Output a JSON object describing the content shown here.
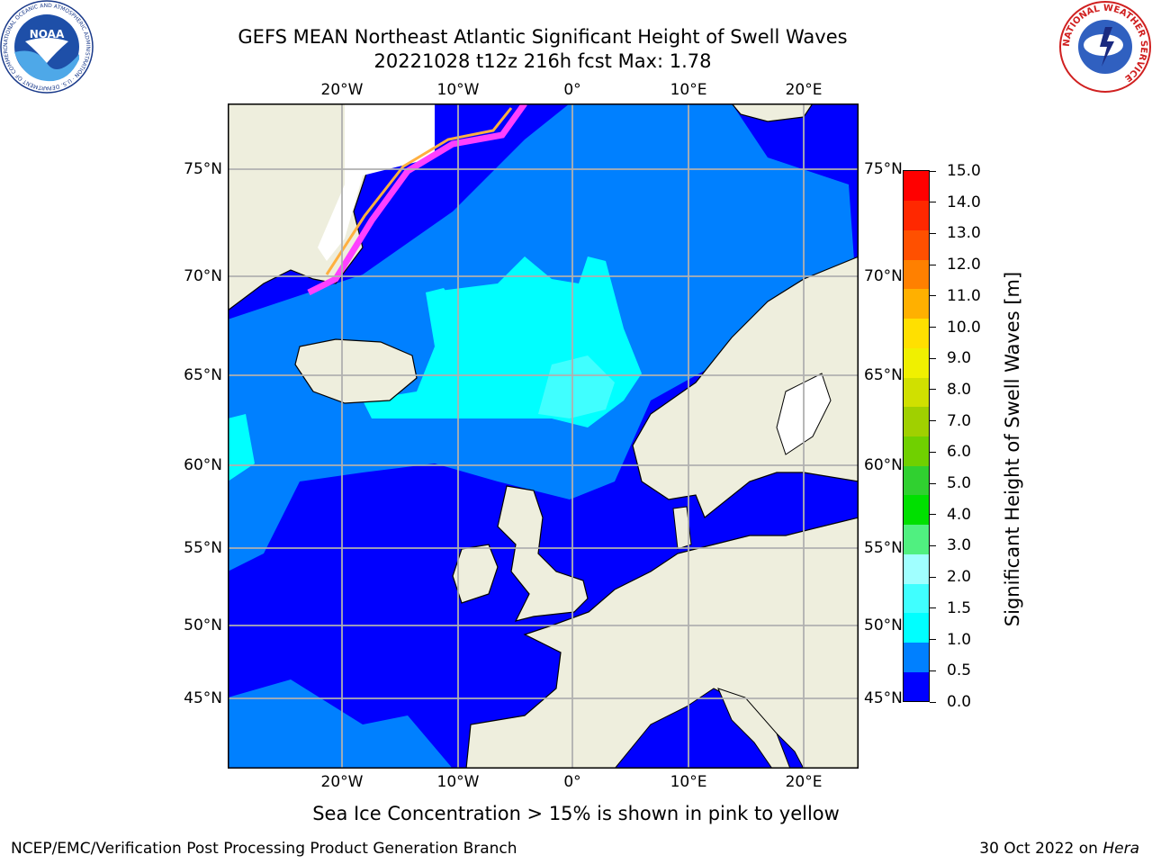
{
  "title": {
    "line1": "GEFS MEAN Northeast Atlantic Significant Height of Swell Waves",
    "line2": "20221028 t12z 216h fcst   Max: 1.78"
  },
  "map": {
    "lon_range": [
      -30,
      25
    ],
    "lat_range": [
      41,
      78
    ],
    "lon_ticks": [
      "20°W",
      "10°W",
      "0°",
      "10°E",
      "20°E"
    ],
    "lon_values": [
      -20,
      -10,
      0,
      10,
      20
    ],
    "lat_ticks": [
      "75°N",
      "70°N",
      "65°N",
      "60°N",
      "55°N",
      "50°N",
      "45°N"
    ],
    "lat_values": [
      75,
      70,
      65,
      60,
      55,
      50,
      45
    ],
    "colors": {
      "ocean_low": "#0000ff",
      "ocean_mid": "#0080ff",
      "ocean_high": "#00ffff",
      "ocean_peak": "#40ffff",
      "land": "#eeeedd",
      "ice_edge": "#ff40ff",
      "ice_warm": "#ffb040",
      "grid": "#b0b0b0"
    }
  },
  "colorbar": {
    "label": "Significant Height of Swell Waves [m]",
    "ticks": [
      "15.0",
      "14.0",
      "13.0",
      "12.0",
      "11.0",
      "10.0",
      "9.0",
      "8.0",
      "7.0",
      "6.0",
      "5.0",
      "4.0",
      "3.0",
      "2.0",
      "1.5",
      "1.0",
      "0.5",
      "0.0"
    ],
    "colors": [
      "#0000ff",
      "#0080ff",
      "#00ffff",
      "#40ffff",
      "#a0ffff",
      "#50f080",
      "#00e000",
      "#30d030",
      "#70d000",
      "#a0d000",
      "#d0e000",
      "#f0f000",
      "#ffe000",
      "#ffb000",
      "#ff8000",
      "#ff5000",
      "#ff2800",
      "#ff0000"
    ]
  },
  "caption": "Sea Ice Concentration > 15% is shown in pink to yellow",
  "footer": {
    "left": "NCEP/EMC/Verification Post Processing Product Generation Branch",
    "right_prefix": "30 Oct 2022 on ",
    "right_host": "Hera"
  },
  "logos": {
    "noaa_text": "NOAA",
    "noaa_ring": "NATIONAL OCEANIC AND ATMOSPHERIC ADMINISTRATION · U.S. DEPARTMENT OF COMMERCE",
    "nws_ring": "NATIONAL WEATHER SERVICE"
  }
}
